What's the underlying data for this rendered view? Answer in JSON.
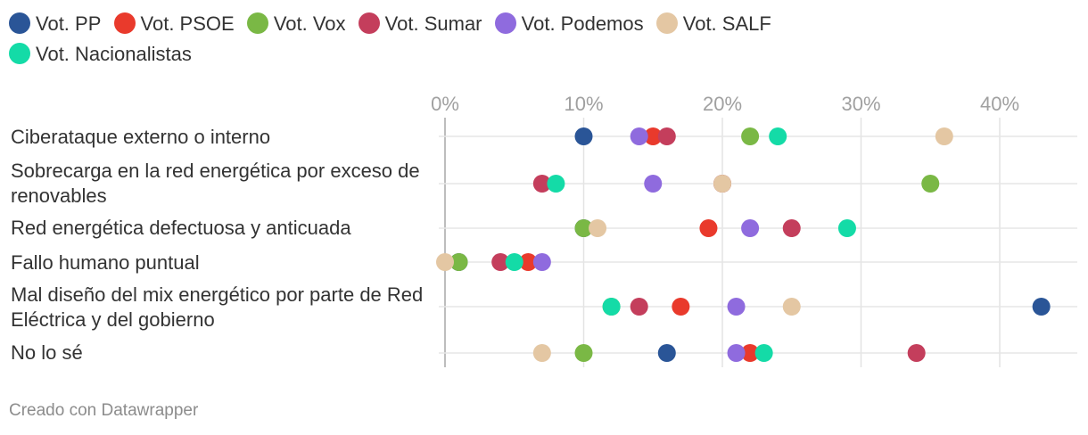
{
  "legend": [
    {
      "name": "Vot. PP",
      "color": "#2a5597"
    },
    {
      "name": "Vot. PSOE",
      "color": "#e93a2c"
    },
    {
      "name": "Vot. Vox",
      "color": "#7ab845"
    },
    {
      "name": "Vot. Sumar",
      "color": "#c43e5c"
    },
    {
      "name": "Vot. Podemos",
      "color": "#8f6bde"
    },
    {
      "name": "Vot. SALF",
      "color": "#e4c7a3"
    },
    {
      "name": "Vot. Nacionalistas",
      "color": "#14dba7"
    }
  ],
  "footer": "Creado con Datawrapper",
  "chart_data": {
    "type": "scatter",
    "subtype": "dot-plot",
    "x_ticks": [
      "0%",
      "10%",
      "20%",
      "30%",
      "40%"
    ],
    "xlim": [
      0,
      45
    ],
    "grid": true,
    "legend_placement": "top",
    "categories": [
      "Ciberataque externo o interno",
      "Sobrecarga en la red energética por exceso de renovables",
      "Red energética defectuosa y anticuada",
      "Fallo humano puntual",
      "Mal diseño del mix energético por parte de Red Eléctrica y del gobierno",
      "No lo sé"
    ],
    "series": [
      {
        "name": "Vot. PP",
        "values": [
          10,
          20,
          10,
          1,
          43,
          16
        ]
      },
      {
        "name": "Vot. PSOE",
        "values": [
          15,
          20,
          19,
          6,
          17,
          22
        ]
      },
      {
        "name": "Vot. Vox",
        "values": [
          22,
          35,
          10,
          1,
          12,
          10
        ]
      },
      {
        "name": "Vot. Sumar",
        "values": [
          16,
          7,
          25,
          4,
          14,
          34
        ]
      },
      {
        "name": "Vot. Podemos",
        "values": [
          14,
          15,
          22,
          7,
          21,
          21
        ]
      },
      {
        "name": "Vot. SALF",
        "values": [
          36,
          20,
          11,
          0,
          25,
          7
        ]
      },
      {
        "name": "Vot. Nacionalistas",
        "values": [
          24,
          8,
          29,
          5,
          12,
          23
        ]
      }
    ]
  }
}
